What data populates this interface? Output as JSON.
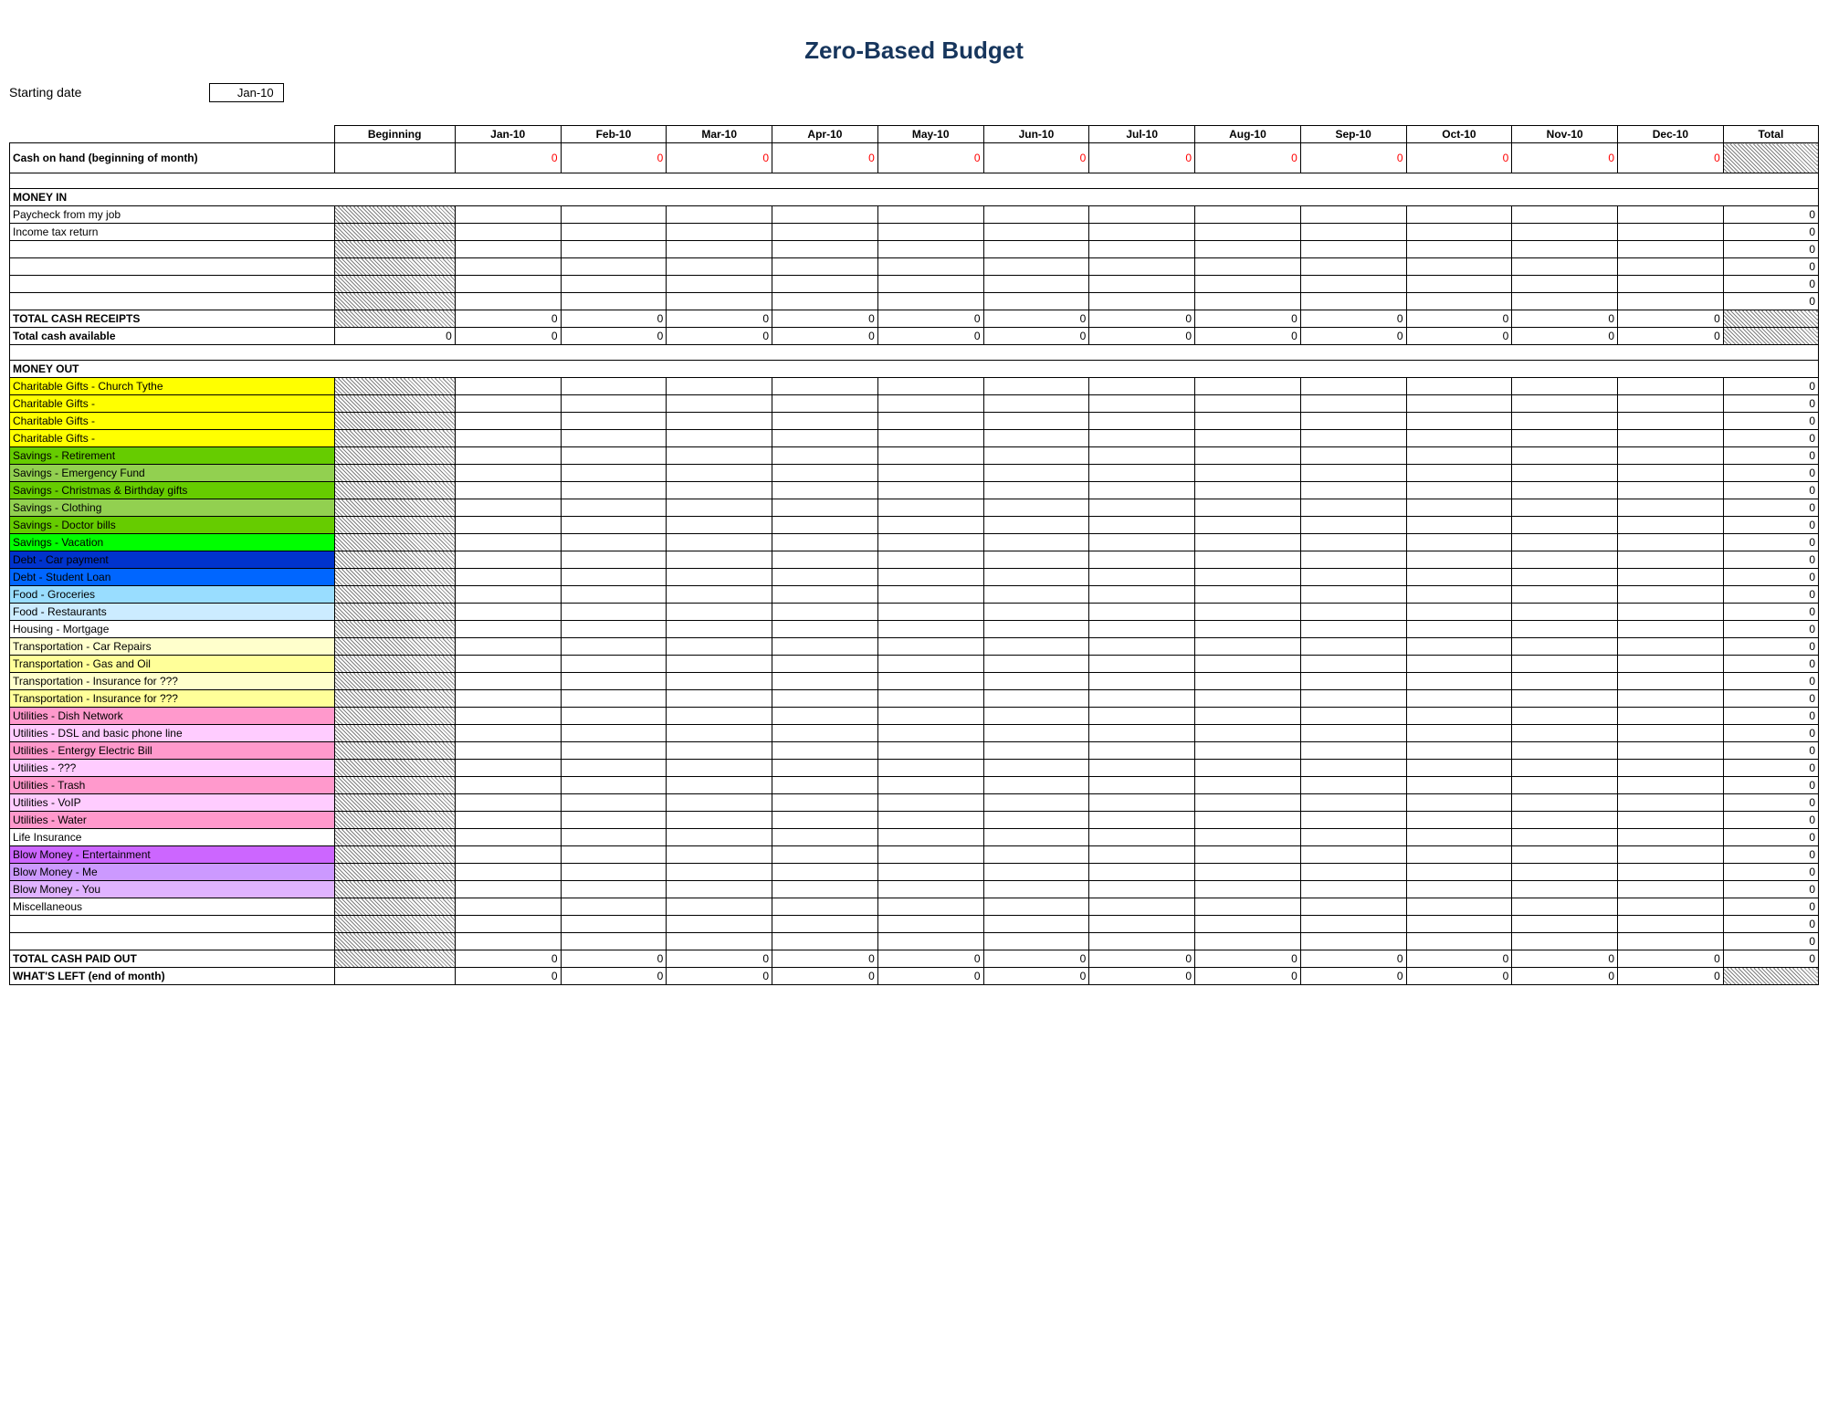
{
  "title": "Zero-Based Budget",
  "starting_date_label": "Starting date",
  "starting_date_value": "Jan-10",
  "columns": {
    "label": "",
    "beginning": "Beginning",
    "months": [
      "Jan-10",
      "Feb-10",
      "Mar-10",
      "Apr-10",
      "May-10",
      "Jun-10",
      "Jul-10",
      "Aug-10",
      "Sep-10",
      "Oct-10",
      "Nov-10",
      "Dec-10"
    ],
    "total": "Total"
  },
  "cash_on_hand_label": "Cash on hand (beginning of month)",
  "cash_on_hand_values": [
    "",
    "0",
    "0",
    "0",
    "0",
    "0",
    "0",
    "0",
    "0",
    "0",
    "0",
    "0",
    "0"
  ],
  "money_in_header": "MONEY IN",
  "money_in_rows": [
    {
      "label": "Paycheck from my job",
      "total": "0"
    },
    {
      "label": "Income tax return",
      "total": "0"
    },
    {
      "label": "",
      "total": "0"
    },
    {
      "label": "",
      "total": "0"
    },
    {
      "label": "",
      "total": "0"
    },
    {
      "label": "",
      "total": "0"
    }
  ],
  "total_receipts_label": "TOTAL CASH RECEIPTS",
  "total_receipts_values": [
    "0",
    "0",
    "0",
    "0",
    "0",
    "0",
    "0",
    "0",
    "0",
    "0",
    "0",
    "0"
  ],
  "total_avail_label": "Total cash available",
  "total_avail_values": [
    "0",
    "0",
    "0",
    "0",
    "0",
    "0",
    "0",
    "0",
    "0",
    "0",
    "0",
    "0",
    "0"
  ],
  "money_out_header": "MONEY OUT",
  "money_out_rows": [
    {
      "label": "Charitable Gifts - Church Tythe",
      "color": "#ffff00",
      "total": "0"
    },
    {
      "label": "Charitable Gifts -",
      "color": "#ffff00",
      "total": "0"
    },
    {
      "label": "Charitable Gifts -",
      "color": "#ffff00",
      "total": "0"
    },
    {
      "label": "Charitable Gifts -",
      "color": "#ffff00",
      "total": "0"
    },
    {
      "label": "Savings - Retirement",
      "color": "#66cc00",
      "total": "0"
    },
    {
      "label": "Savings - Emergency Fund",
      "color": "#92d050",
      "total": "0"
    },
    {
      "label": "Savings - Christmas & Birthday gifts",
      "color": "#66cc00",
      "total": "0"
    },
    {
      "label": "Savings - Clothing",
      "color": "#92d050",
      "total": "0"
    },
    {
      "label": "Savings - Doctor bills",
      "color": "#66cc00",
      "total": "0"
    },
    {
      "label": "Savings - Vacation",
      "color": "#00ff00",
      "total": "0"
    },
    {
      "label": "Debt - Car payment",
      "color": "#0033cc",
      "total": "0"
    },
    {
      "label": "Debt - Student Loan",
      "color": "#0066ff",
      "total": "0"
    },
    {
      "label": "Food - Groceries",
      "color": "#99ddff",
      "total": "0"
    },
    {
      "label": "Food - Restaurants",
      "color": "#ccecff",
      "total": "0"
    },
    {
      "label": "Housing - Mortgage",
      "color": "#ffffff",
      "total": "0"
    },
    {
      "label": "Transportation - Car Repairs",
      "color": "#ffffcc",
      "total": "0"
    },
    {
      "label": "Transportation - Gas and Oil",
      "color": "#ffff99",
      "total": "0"
    },
    {
      "label": "Transportation - Insurance for ???",
      "color": "#ffffcc",
      "total": "0"
    },
    {
      "label": "Transportation - Insurance for ???",
      "color": "#ffff99",
      "total": "0"
    },
    {
      "label": "Utilities - Dish Network",
      "color": "#ff99cc",
      "total": "0"
    },
    {
      "label": "Utilities - DSL and basic phone line",
      "color": "#ffccff",
      "total": "0"
    },
    {
      "label": "Utilities - Entergy Electric Bill",
      "color": "#ff99cc",
      "total": "0"
    },
    {
      "label": "Utilities - ???",
      "color": "#ffccff",
      "total": "0"
    },
    {
      "label": "Utilities - Trash",
      "color": "#ff99cc",
      "total": "0"
    },
    {
      "label": "Utilities - VoIP",
      "color": "#ffccff",
      "total": "0"
    },
    {
      "label": "Utilities - Water",
      "color": "#ff99cc",
      "total": "0"
    },
    {
      "label": "Life Insurance",
      "color": "#ffffff",
      "total": "0"
    },
    {
      "label": "Blow Money - Entertainment",
      "color": "#cc66ff",
      "total": "0"
    },
    {
      "label": "Blow Money - Me",
      "color": "#cc99ff",
      "total": "0"
    },
    {
      "label": "Blow Money - You",
      "color": "#e0b3ff",
      "total": "0"
    },
    {
      "label": "Miscellaneous",
      "color": "#ffffff",
      "total": "0"
    },
    {
      "label": "",
      "color": "#ffffff",
      "total": "0"
    },
    {
      "label": "",
      "color": "#ffffff",
      "total": "0"
    }
  ],
  "total_paid_label": "TOTAL CASH PAID OUT",
  "total_paid_values": [
    "0",
    "0",
    "0",
    "0",
    "0",
    "0",
    "0",
    "0",
    "0",
    "0",
    "0",
    "0",
    "0"
  ],
  "whats_left_label": "WHAT'S LEFT (end of month)",
  "whats_left_values": [
    "0",
    "0",
    "0",
    "0",
    "0",
    "0",
    "0",
    "0",
    "0",
    "0",
    "0",
    "0",
    "0"
  ]
}
